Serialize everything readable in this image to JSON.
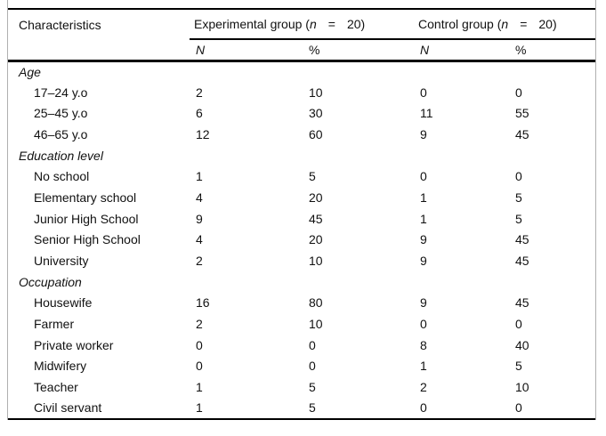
{
  "table": {
    "characteristics_header": "Characteristics",
    "group_headers": [
      {
        "prefix": "Experimental group (",
        "n": "n",
        "eq": "=",
        "count": "20)"
      },
      {
        "prefix": "Control group (",
        "n": "n",
        "eq": "=",
        "count": "20)"
      }
    ],
    "subheader": {
      "n": "N",
      "percent": "%"
    },
    "sections": [
      {
        "title": "Age",
        "rows": [
          {
            "label": "17–24 y.o",
            "values": [
              "2",
              "10",
              "0",
              "0"
            ]
          },
          {
            "label": "25–45 y.o",
            "values": [
              "6",
              "30",
              "11",
              "55"
            ]
          },
          {
            "label": "46–65 y.o",
            "values": [
              "12",
              "60",
              "9",
              "45"
            ]
          }
        ]
      },
      {
        "title": "Education level",
        "rows": [
          {
            "label": "No school",
            "values": [
              "1",
              "5",
              "0",
              "0"
            ]
          },
          {
            "label": "Elementary school",
            "values": [
              "4",
              "20",
              "1",
              "5"
            ]
          },
          {
            "label": "Junior High School",
            "values": [
              "9",
              "45",
              "1",
              "5"
            ]
          },
          {
            "label": "Senior High School",
            "values": [
              "4",
              "20",
              "9",
              "45"
            ]
          },
          {
            "label": "University",
            "values": [
              "2",
              "10",
              "9",
              "45"
            ]
          }
        ]
      },
      {
        "title": "Occupation",
        "rows": [
          {
            "label": "Housewife",
            "values": [
              "16",
              "80",
              "9",
              "45"
            ]
          },
          {
            "label": "Farmer",
            "values": [
              "2",
              "10",
              "0",
              "0"
            ]
          },
          {
            "label": "Private worker",
            "values": [
              "0",
              "0",
              "8",
              "40"
            ]
          },
          {
            "label": "Midwifery",
            "values": [
              "0",
              "0",
              "1",
              "5"
            ]
          },
          {
            "label": "Teacher",
            "values": [
              "1",
              "5",
              "2",
              "10"
            ]
          },
          {
            "label": "Civil servant",
            "values": [
              "1",
              "5",
              "0",
              "0"
            ]
          }
        ]
      }
    ],
    "colors": {
      "rule": "#000000",
      "frame_border": "#b0b0b0",
      "text": "#111111"
    }
  }
}
